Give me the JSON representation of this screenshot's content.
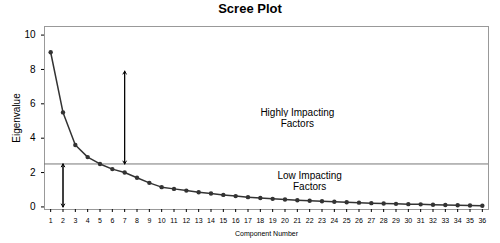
{
  "chart_data": {
    "type": "line",
    "title": "Scree Plot",
    "xlabel": "Component Number",
    "ylabel": "Eigenvalue",
    "x": [
      1,
      2,
      3,
      4,
      5,
      6,
      7,
      8,
      9,
      10,
      11,
      12,
      13,
      14,
      15,
      16,
      17,
      18,
      19,
      20,
      21,
      22,
      23,
      24,
      25,
      26,
      27,
      28,
      29,
      30,
      31,
      32,
      33,
      34,
      35,
      36
    ],
    "values": [
      9.0,
      5.5,
      3.6,
      2.9,
      2.5,
      2.2,
      2.0,
      1.7,
      1.4,
      1.15,
      1.05,
      0.95,
      0.85,
      0.78,
      0.7,
      0.63,
      0.57,
      0.52,
      0.47,
      0.43,
      0.39,
      0.36,
      0.33,
      0.3,
      0.27,
      0.25,
      0.22,
      0.2,
      0.18,
      0.16,
      0.15,
      0.13,
      0.11,
      0.1,
      0.08,
      0.07
    ],
    "color": "#333333",
    "marker": "circle",
    "xlim": [
      0.5,
      36.5
    ],
    "xticks": [
      1,
      2,
      3,
      4,
      5,
      6,
      7,
      8,
      9,
      10,
      11,
      12,
      13,
      14,
      15,
      16,
      17,
      18,
      19,
      20,
      21,
      22,
      23,
      24,
      25,
      26,
      27,
      28,
      29,
      30,
      31,
      32,
      33,
      34,
      35,
      36
    ],
    "ylim": [
      -0.15,
      10.5
    ],
    "yticks": [
      0,
      2,
      4,
      6,
      8,
      10
    ],
    "reference_lines": [
      {
        "y": 2.5,
        "color": "#777777"
      }
    ],
    "arrows": [
      {
        "x": 7,
        "y1": 2.5,
        "y2": 7.9
      },
      {
        "x": 2,
        "y1": 0.0,
        "y2": 2.5
      }
    ],
    "annotations": [
      {
        "text": "Highly Impacting\nFactors",
        "x": 21,
        "y": 5.2
      },
      {
        "text": "Low Impacting\nFactors",
        "x": 22,
        "y": 1.5
      }
    ]
  }
}
